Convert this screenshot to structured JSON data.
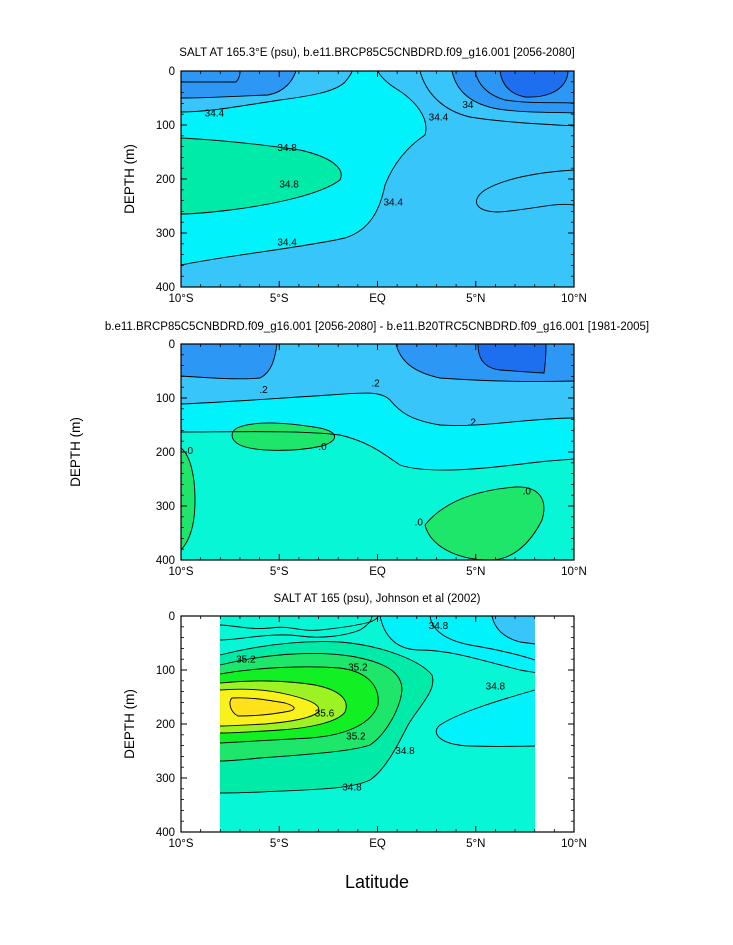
{
  "figure": {
    "xlabel": "Latitude",
    "colors": {
      "c_darkblue": "#1e6ff0",
      "c_blue": "#2c97f4",
      "c_sky": "#38c6fa",
      "c_cyan": "#00f2fa",
      "c_aqua": "#06f6d6",
      "c_seagreen": "#00eaa8",
      "c_green": "#1ee66a",
      "c_lime": "#10f022",
      "c_yellowgreen": "#9cf222",
      "c_yellow": "#f8f21a",
      "c_gold": "#ffe21c"
    }
  },
  "chart_data": [
    {
      "type": "contour",
      "title": "SALT AT 165.3°E (psu), b.e11.BRCP85C5CNBDRD.f09_g16.001 [2056-2080]",
      "xlabel": "",
      "ylabel": "DEPTH (m)",
      "xlim": [
        -10,
        10
      ],
      "ylim": [
        400,
        0
      ],
      "x_tick_values": [
        -10,
        -5,
        0,
        5,
        10
      ],
      "x_tick_labels": [
        "10°S",
        "5°S",
        "EQ",
        "5°N",
        "10°N"
      ],
      "y_tick_values": [
        0,
        100,
        200,
        300,
        400
      ],
      "y_tick_labels": [
        "0",
        "100",
        "200",
        "300",
        "400"
      ],
      "contour_labels": [
        {
          "text": "34.4",
          "x": -8.3,
          "y": 78
        },
        {
          "text": "34.8",
          "x": -4.6,
          "y": 142
        },
        {
          "text": "34.8",
          "x": -4.5,
          "y": 209
        },
        {
          "text": "34.4",
          "x": -4.6,
          "y": 317
        },
        {
          "text": "34.4",
          "x": 0.8,
          "y": 243
        },
        {
          "text": "34.4",
          "x": 3.1,
          "y": 85
        },
        {
          "text": "34",
          "x": 4.6,
          "y": 62
        }
      ]
    },
    {
      "type": "contour",
      "title": "b.e11.BRCP85C5CNBDRD.f09_g16.001 [2056-2080] - b.e11.B20TRC5CNBDRD.f09_g16.001 [1981-2005]",
      "xlabel": "",
      "ylabel": "DEPTH (m)",
      "xlim": [
        -10,
        10
      ],
      "ylim": [
        400,
        0
      ],
      "x_tick_values": [
        -10,
        -5,
        0,
        5,
        10
      ],
      "x_tick_labels": [
        "10°S",
        "5°S",
        "EQ",
        "5°N",
        "10°N"
      ],
      "y_tick_values": [
        0,
        100,
        200,
        300,
        400
      ],
      "y_tick_labels": [
        "0",
        "100",
        "200",
        "300",
        "400"
      ],
      "contour_labels": [
        {
          "text": ".2",
          "x": -5.8,
          "y": 84
        },
        {
          "text": ".2",
          "x": -0.1,
          "y": 72
        },
        {
          "text": ".2",
          "x": 4.8,
          "y": 144
        },
        {
          "text": ".0",
          "x": -9.6,
          "y": 197
        },
        {
          "text": ".0",
          "x": -2.8,
          "y": 190
        },
        {
          "text": ".0",
          "x": 7.6,
          "y": 272
        },
        {
          "text": ".0",
          "x": 2.1,
          "y": 330
        }
      ]
    },
    {
      "type": "contour",
      "title": "SALT AT 165 (psu), Johnson et al (2002)",
      "xlabel": "",
      "ylabel": "DEPTH (m)",
      "xlim": [
        -10,
        10
      ],
      "ylim": [
        400,
        0
      ],
      "data_extent": [
        -8,
        8
      ],
      "x_tick_values": [
        -10,
        -5,
        0,
        5,
        10
      ],
      "x_tick_labels": [
        "10°S",
        "5°S",
        "EQ",
        "5°N",
        "10°N"
      ],
      "y_tick_values": [
        0,
        100,
        200,
        300,
        400
      ],
      "y_tick_labels": [
        "0",
        "100",
        "200",
        "300",
        "400"
      ],
      "contour_labels": [
        {
          "text": "35.2",
          "x": -6.7,
          "y": 80
        },
        {
          "text": "35.2",
          "x": -1.0,
          "y": 94
        },
        {
          "text": "35.6",
          "x": -2.7,
          "y": 180
        },
        {
          "text": "35.2",
          "x": -1.1,
          "y": 222
        },
        {
          "text": "34.8",
          "x": 1.4,
          "y": 249
        },
        {
          "text": "34.8",
          "x": 3.1,
          "y": 18
        },
        {
          "text": "34.8",
          "x": 6.0,
          "y": 130
        },
        {
          "text": "34.8",
          "x": -1.3,
          "y": 317
        }
      ]
    }
  ]
}
